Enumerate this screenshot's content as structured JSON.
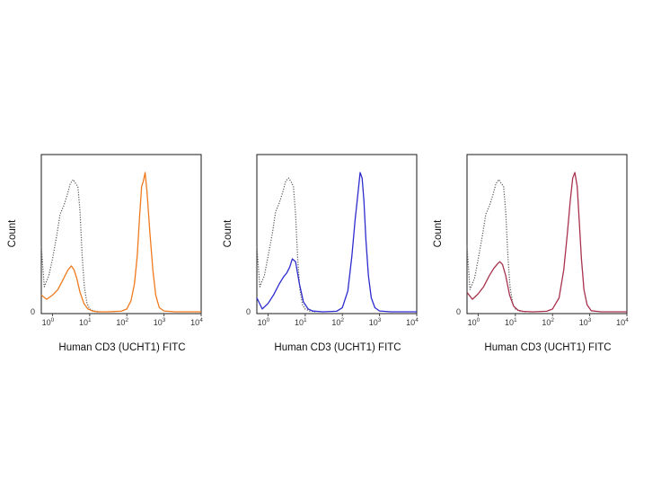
{
  "chart_data": [
    {
      "type": "line",
      "xlabel": "Human CD3 (UCHT1) FITC",
      "ylabel": "Count",
      "x_scale": "log",
      "xlim": [
        0.5,
        10000
      ],
      "x_ticks": [
        {
          "base": "10",
          "exp": "0"
        },
        {
          "base": "10",
          "exp": "1"
        },
        {
          "base": "10",
          "exp": "2"
        },
        {
          "base": "10",
          "exp": "3"
        },
        {
          "base": "10",
          "exp": "4"
        }
      ],
      "y_ticks": [
        "0"
      ],
      "ylim": [
        0,
        1
      ],
      "series": [
        {
          "role": "control",
          "color": "#555555",
          "style": "dotted",
          "x": [
            0.5,
            0.6,
            0.8,
            1.0,
            1.3,
            1.6,
            2.0,
            2.5,
            3.0,
            3.6,
            4.2,
            4.8,
            5.5,
            6.3,
            7.2,
            8.5,
            10,
            13,
            20
          ],
          "y": [
            0.47,
            0.18,
            0.26,
            0.38,
            0.55,
            0.7,
            0.76,
            0.84,
            0.92,
            0.95,
            0.92,
            0.9,
            0.72,
            0.4,
            0.18,
            0.06,
            0.02,
            0.005,
            0
          ]
        },
        {
          "role": "stained",
          "color": "#f07a1e",
          "style": "solid",
          "x": [
            0.5,
            0.7,
            1.0,
            1.4,
            2.0,
            2.6,
            3.2,
            3.8,
            4.5,
            5.5,
            7.0,
            9,
            12,
            16,
            30,
            70,
            100,
            130,
            160,
            190,
            220,
            250,
            280,
            310,
            350,
            420,
            500,
            600,
            750,
            1000,
            2000,
            10000
          ],
          "y": [
            0.12,
            0.09,
            0.12,
            0.16,
            0.24,
            0.3,
            0.33,
            0.3,
            0.24,
            0.14,
            0.06,
            0.02,
            0.005,
            0,
            0,
            0.004,
            0.02,
            0.08,
            0.2,
            0.4,
            0.68,
            0.9,
            0.94,
            1.0,
            0.86,
            0.56,
            0.3,
            0.12,
            0.03,
            0.006,
            0,
            0
          ]
        }
      ]
    },
    {
      "type": "line",
      "xlabel": "Human CD3 (UCHT1) FITC",
      "ylabel": "Count",
      "x_scale": "log",
      "xlim": [
        0.5,
        10000
      ],
      "x_ticks": [
        {
          "base": "10",
          "exp": "0"
        },
        {
          "base": "10",
          "exp": "1"
        },
        {
          "base": "10",
          "exp": "2"
        },
        {
          "base": "10",
          "exp": "3"
        },
        {
          "base": "10",
          "exp": "4"
        }
      ],
      "y_ticks": [
        "0"
      ],
      "ylim": [
        0,
        1
      ],
      "series": [
        {
          "role": "control",
          "color": "#555555",
          "style": "dotted",
          "x": [
            0.5,
            0.6,
            0.8,
            1.0,
            1.3,
            1.6,
            2.0,
            2.5,
            3.0,
            3.6,
            4.2,
            4.8,
            5.5,
            6.3,
            7.2,
            8.5,
            10,
            13,
            20
          ],
          "y": [
            0.47,
            0.18,
            0.26,
            0.4,
            0.56,
            0.72,
            0.78,
            0.86,
            0.94,
            0.96,
            0.93,
            0.9,
            0.7,
            0.38,
            0.16,
            0.05,
            0.02,
            0.005,
            0
          ]
        },
        {
          "role": "stained",
          "color": "#2c2ccf",
          "style": "solid",
          "x": [
            0.5,
            0.7,
            1.0,
            1.4,
            2.0,
            2.6,
            3.2,
            3.8,
            4.5,
            5.5,
            7.0,
            9,
            12,
            16,
            30,
            70,
            100,
            140,
            180,
            220,
            260,
            300,
            340,
            380,
            430,
            500,
            600,
            750,
            1000,
            2000,
            10000
          ],
          "y": [
            0.1,
            0.02,
            0.06,
            0.12,
            0.2,
            0.25,
            0.28,
            0.32,
            0.38,
            0.36,
            0.2,
            0.07,
            0.02,
            0.005,
            0,
            0.004,
            0.03,
            0.15,
            0.4,
            0.66,
            0.84,
            1.0,
            0.96,
            0.8,
            0.52,
            0.26,
            0.1,
            0.03,
            0.006,
            0,
            0
          ]
        }
      ]
    },
    {
      "type": "line",
      "xlabel": "Human CD3 (UCHT1) FITC",
      "ylabel": "Count",
      "x_scale": "log",
      "xlim": [
        0.5,
        10000
      ],
      "x_ticks": [
        {
          "base": "10",
          "exp": "0"
        },
        {
          "base": "10",
          "exp": "1"
        },
        {
          "base": "10",
          "exp": "2"
        },
        {
          "base": "10",
          "exp": "3"
        },
        {
          "base": "10",
          "exp": "4"
        }
      ],
      "y_ticks": [
        "0"
      ],
      "ylim": [
        0,
        1
      ],
      "series": [
        {
          "role": "control",
          "color": "#555555",
          "style": "dotted",
          "x": [
            0.5,
            0.6,
            0.8,
            1.0,
            1.3,
            1.6,
            2.0,
            2.5,
            3.0,
            3.6,
            4.2,
            4.8,
            5.5,
            6.3,
            7.2,
            8.5,
            10,
            13,
            20
          ],
          "y": [
            0.47,
            0.16,
            0.24,
            0.38,
            0.55,
            0.7,
            0.76,
            0.84,
            0.92,
            0.95,
            0.92,
            0.9,
            0.72,
            0.4,
            0.18,
            0.06,
            0.02,
            0.005,
            0
          ]
        },
        {
          "role": "stained",
          "color": "#a8324e",
          "style": "solid",
          "x": [
            0.5,
            0.7,
            1.0,
            1.4,
            2.0,
            2.6,
            3.2,
            3.8,
            4.5,
            5.5,
            7.0,
            9,
            12,
            16,
            30,
            70,
            100,
            150,
            200,
            250,
            300,
            350,
            400,
            460,
            520,
            600,
            700,
            850,
            1100,
            2000,
            10000
          ],
          "y": [
            0.14,
            0.09,
            0.13,
            0.18,
            0.26,
            0.31,
            0.34,
            0.36,
            0.34,
            0.26,
            0.12,
            0.04,
            0.01,
            0.003,
            0,
            0.004,
            0.02,
            0.1,
            0.3,
            0.56,
            0.8,
            0.96,
            1.0,
            0.9,
            0.66,
            0.38,
            0.16,
            0.05,
            0.008,
            0,
            0
          ]
        }
      ]
    }
  ]
}
